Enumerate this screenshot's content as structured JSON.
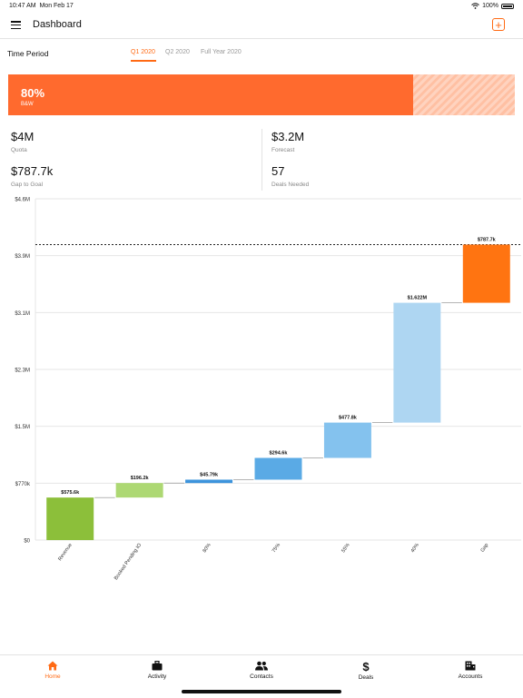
{
  "status_bar": {
    "time": "10:47 AM",
    "date": "Mon Feb 17",
    "battery": "100%"
  },
  "header": {
    "title": "Dashboard",
    "menu_icon": "hamburger-menu-icon",
    "add_icon": "add-square-icon"
  },
  "time_period": {
    "label": "Time Period",
    "tabs": [
      {
        "label": "Q1 2020",
        "active": true
      },
      {
        "label": "Q2 2020",
        "active": false
      },
      {
        "label": "Full Year 2020",
        "active": false
      }
    ]
  },
  "progress": {
    "percent_label": "80%",
    "value": 0.8,
    "sublabel": "B&W",
    "fill_color": "#ff6a2e"
  },
  "metrics": {
    "quota": {
      "value": "$4M",
      "label": "Quota"
    },
    "forecast": {
      "value": "$3.2M",
      "label": "Forecast"
    },
    "gap": {
      "value": "$787.7k",
      "label": "Gap to Goal"
    },
    "deals": {
      "value": "57",
      "label": "Deals Needed"
    }
  },
  "chart_data": {
    "type": "bar",
    "subtype": "waterfall",
    "y_ticks": [
      "$0",
      "$770k",
      "$1.5M",
      "$2.3M",
      "$3.1M",
      "$3.9M",
      "$4.6M"
    ],
    "y_tick_values": [
      0,
      770,
      1540,
      2310,
      3080,
      3850,
      4620
    ],
    "ylim": [
      0,
      4620
    ],
    "units": "$ thousands",
    "target_line": 4000,
    "grid": true,
    "categories": [
      "Revenue",
      "Booked Pending IO",
      "80%",
      "75%",
      "55%",
      "40%",
      "Gap"
    ],
    "values": [
      575.6,
      196.2,
      45.79,
      294.6,
      477.8,
      1622,
      787.7
    ],
    "starts": [
      0,
      575.6,
      771.8,
      817.6,
      1112.2,
      1590,
      3212
    ],
    "value_labels": [
      "$575.6k",
      "$196.2k",
      "$45.79k",
      "$294.6k",
      "$477.8k",
      "$1.622M",
      "$787.7k"
    ],
    "colors": [
      "#8cbf3a",
      "#add873",
      "#3d94dc",
      "#5aaae5",
      "#84c2ee",
      "#aed6f2",
      "#ff7411"
    ]
  },
  "tab_bar": {
    "items": [
      {
        "label": "Home",
        "icon": "home-icon",
        "active": true
      },
      {
        "label": "Activity",
        "icon": "briefcase-icon",
        "active": false
      },
      {
        "label": "Contacts",
        "icon": "contacts-icon",
        "active": false
      },
      {
        "label": "Deals",
        "icon": "dollar-icon",
        "active": false
      },
      {
        "label": "Accounts",
        "icon": "building-icon",
        "active": false
      }
    ]
  },
  "accent_color": "#ff6a14"
}
